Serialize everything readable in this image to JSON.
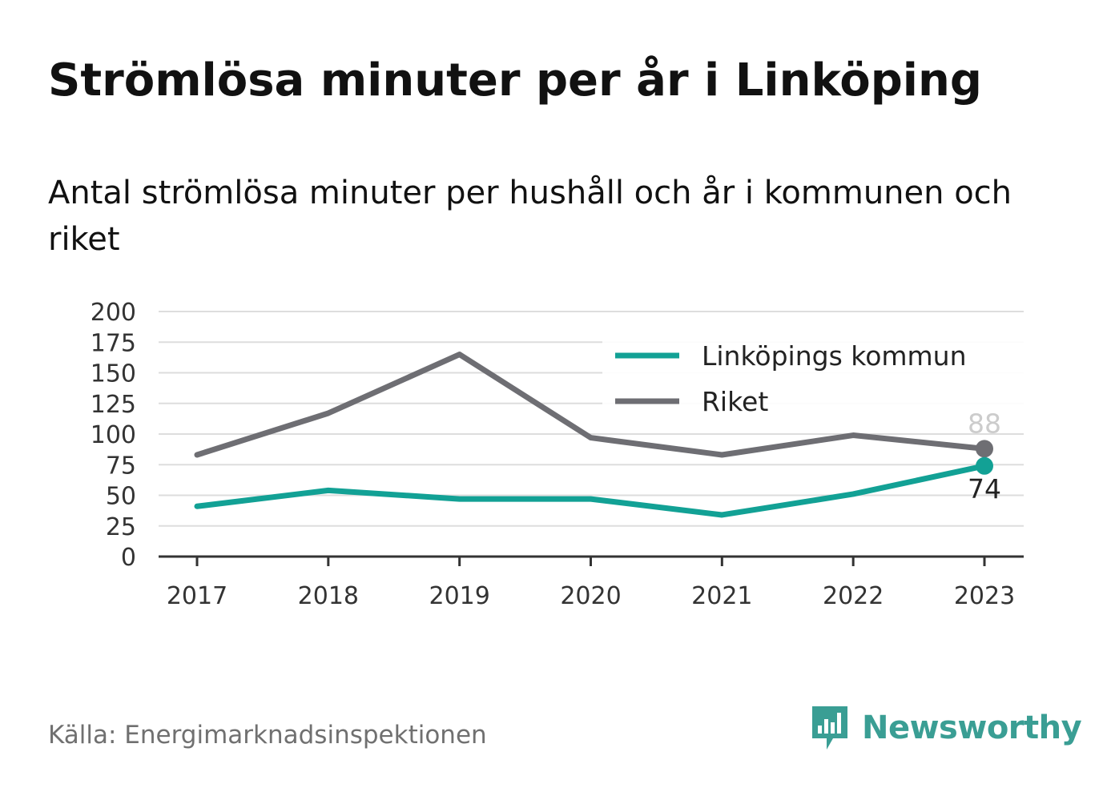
{
  "title": "Strömlösa minuter per år i Linköping",
  "subtitle": "Antal strömlösa minuter per hushåll och år i kommunen och riket",
  "source": "Källa: Energimarknadsinspektionen",
  "brand": {
    "name": "Newsworthy",
    "icon": "newsworthy-logo-icon",
    "color": "#3a9e94"
  },
  "chart_data": {
    "type": "line",
    "x": [
      "2017",
      "2018",
      "2019",
      "2020",
      "2021",
      "2022",
      "2023"
    ],
    "ylim": [
      0,
      200
    ],
    "yticks": [
      0,
      25,
      50,
      75,
      100,
      125,
      150,
      175,
      200
    ],
    "grid": true,
    "legend_position": "top-right",
    "series": [
      {
        "name": "Linköpings kommun",
        "color": "#12a195",
        "values": [
          41,
          54,
          47,
          47,
          34,
          51,
          74
        ],
        "end_label": "74"
      },
      {
        "name": "Riket",
        "color": "#6e6e73",
        "values": [
          83,
          117,
          165,
          97,
          83,
          99,
          88
        ],
        "end_label": "88"
      }
    ]
  }
}
